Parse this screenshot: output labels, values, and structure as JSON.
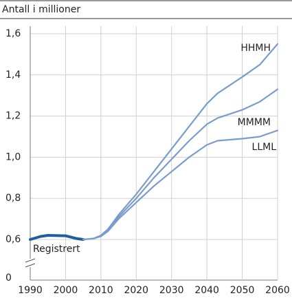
{
  "chart_data": {
    "type": "line",
    "title": "Antall i millioner",
    "x": [
      1990,
      1993,
      1995,
      2000,
      2003,
      2005,
      2008,
      2010,
      2012,
      2015,
      2020,
      2025,
      2030,
      2035,
      2040,
      2043,
      2050,
      2055,
      2060
    ],
    "series": [
      {
        "name": "Registrert",
        "color": "#1f5f9e",
        "values": [
          0.6,
          0.615,
          0.62,
          0.618,
          0.605,
          0.6,
          null,
          null,
          null,
          null,
          null,
          null,
          null,
          null,
          null,
          null,
          null,
          null,
          null
        ]
      },
      {
        "name": "HHMH",
        "color": "#7a9ccc",
        "values": [
          null,
          null,
          null,
          null,
          null,
          0.6,
          0.605,
          0.62,
          0.65,
          0.72,
          0.82,
          0.93,
          1.04,
          1.15,
          1.26,
          1.31,
          1.39,
          1.45,
          1.55
        ]
      },
      {
        "name": "MMMM",
        "color": "#7a9ccc",
        "values": [
          null,
          null,
          null,
          null,
          null,
          0.6,
          0.605,
          0.618,
          0.645,
          0.71,
          0.8,
          0.9,
          0.99,
          1.08,
          1.16,
          1.19,
          1.23,
          1.27,
          1.33
        ]
      },
      {
        "name": "LLML",
        "color": "#7a9ccc",
        "values": [
          null,
          null,
          null,
          null,
          null,
          0.6,
          0.605,
          0.615,
          0.64,
          0.7,
          0.78,
          0.86,
          0.93,
          1.0,
          1.06,
          1.08,
          1.09,
          1.1,
          1.13
        ]
      }
    ],
    "xlim": [
      1990,
      2060
    ],
    "xticks": [
      1990,
      2000,
      2010,
      2020,
      2030,
      2040,
      2050,
      2060
    ],
    "ylim": [
      0,
      1.6
    ],
    "yticks": [
      0,
      {
        "value": 0.6,
        "label": "0,6"
      },
      {
        "value": 0.8,
        "label": "0,8"
      },
      {
        "value": 1.0,
        "label": "1,0"
      },
      {
        "value": 1.2,
        "label": "1,2"
      },
      {
        "value": 1.4,
        "label": "1,4"
      },
      {
        "value": 1.6,
        "label": "1,6"
      }
    ],
    "axis_break": [
      0,
      0.6
    ],
    "grid": true
  }
}
